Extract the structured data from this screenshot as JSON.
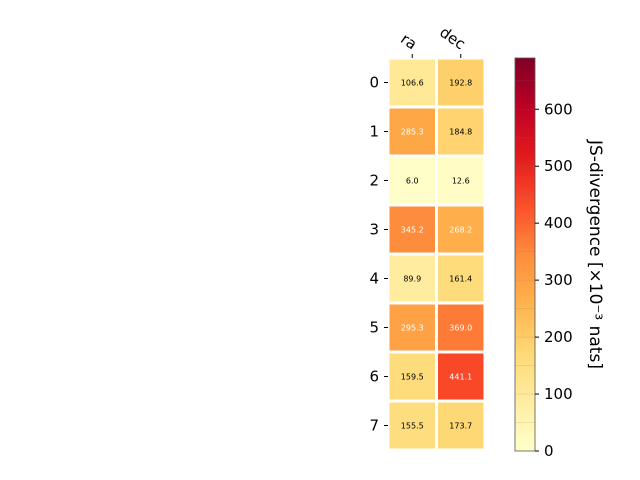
{
  "chart_data": {
    "type": "heatmap",
    "x_categories": [
      "ra",
      "dec"
    ],
    "y_categories": [
      "0",
      "1",
      "2",
      "3",
      "4",
      "5",
      "6",
      "7"
    ],
    "values": [
      [
        106.6,
        192.8
      ],
      [
        285.3,
        184.8
      ],
      [
        6.0,
        12.6
      ],
      [
        345.2,
        268.2
      ],
      [
        89.9,
        161.4
      ],
      [
        295.3,
        369.0
      ],
      [
        159.5,
        441.1
      ],
      [
        155.5,
        173.7
      ]
    ],
    "value_labels": [
      [
        "106.6",
        "192.8"
      ],
      [
        "285.3",
        "184.8"
      ],
      [
        "6.0",
        "12.6"
      ],
      [
        "345.2",
        "268.2"
      ],
      [
        "89.9",
        "161.4"
      ],
      [
        "295.3",
        "369.0"
      ],
      [
        "159.5",
        "441.1"
      ],
      [
        "155.5",
        "173.7"
      ]
    ],
    "colorbar": {
      "label": "JS-divergence [×10⁻³ nats]",
      "range": [
        0,
        690
      ],
      "ticks": [
        0,
        100,
        200,
        300,
        400,
        500,
        600
      ],
      "tick_labels": [
        "0",
        "100",
        "200",
        "300",
        "400",
        "500",
        "600"
      ],
      "colormap": "YlOrRd"
    },
    "title": "",
    "xlabel": "",
    "ylabel": "",
    "grid": false
  }
}
